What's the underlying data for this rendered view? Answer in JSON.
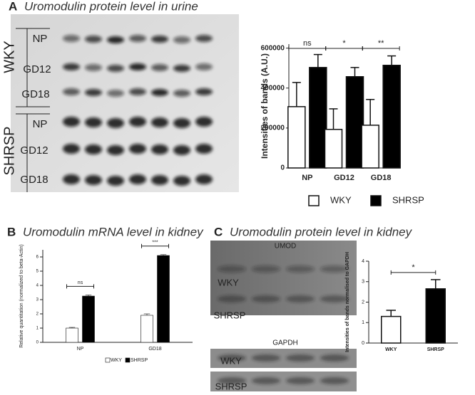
{
  "panels": [
    {
      "letter": "A",
      "title": "Uromodulin protein level in urine",
      "blot_labels": [
        "WKY",
        "SHRSP",
        "NP",
        "GD12",
        "GD18",
        "NP",
        "GD12",
        "GD18"
      ]
    },
    {
      "letter": "B",
      "title": "Uromodulin mRNA level in kidney"
    },
    {
      "letter": "C",
      "title": "Uromodulin protein level in kidney",
      "blot_labels": [
        "UMOD",
        "WKY",
        "SHRSP",
        "GAPDH",
        "WKY",
        "SHRSP"
      ]
    }
  ],
  "chart_data": [
    {
      "type": "bar",
      "y_label": "Intensities of bands (A.U.)",
      "categories": [
        "NP",
        "GD12",
        "GD18"
      ],
      "series": [
        {
          "name": "WKY",
          "color": "#ffffff",
          "values": [
            307000,
            193000,
            214000
          ],
          "errors": [
            121000,
            103000,
            129000
          ]
        },
        {
          "name": "SHRSP",
          "color": "#000000",
          "values": [
            503000,
            457000,
            514000
          ],
          "errors": [
            65000,
            46000,
            47000
          ]
        }
      ],
      "significance": [
        "ns",
        "*",
        "**"
      ],
      "ylim": [
        0,
        620000
      ],
      "yticks": [
        0,
        200000,
        400000,
        600000
      ],
      "legend": "bottom"
    },
    {
      "type": "bar",
      "y_label": "Relative quantitation (normalized to beta-Actin)",
      "categories": [
        "NP",
        "GD18"
      ],
      "series": [
        {
          "name": "WKY",
          "color": "#ffffff",
          "values": [
            1.0,
            1.9
          ],
          "errors": [
            0.05,
            0.1
          ]
        },
        {
          "name": "SHRSP",
          "color": "#000000",
          "values": [
            3.25,
            6.1
          ],
          "errors": [
            0.08,
            0.06
          ]
        }
      ],
      "significance": [
        "ns",
        "***"
      ],
      "ylim": [
        0,
        6.5
      ],
      "yticks": [
        0,
        1,
        2,
        3,
        4,
        5,
        6
      ],
      "legend": "bottom"
    },
    {
      "type": "bar",
      "y_label": "Intensities of bands normalised to GAPDH",
      "categories": [
        "WKY",
        "SHRSP"
      ],
      "series": [
        {
          "name": null,
          "color": "#ffffff",
          "values": [
            1.3,
            2.65
          ],
          "errors": [
            0.3,
            0.45
          ]
        }
      ],
      "colors": [
        "#ffffff",
        "#000000"
      ],
      "significance": "*",
      "ylim": [
        0,
        4
      ],
      "yticks": [
        0,
        1,
        2,
        3,
        4
      ]
    }
  ]
}
